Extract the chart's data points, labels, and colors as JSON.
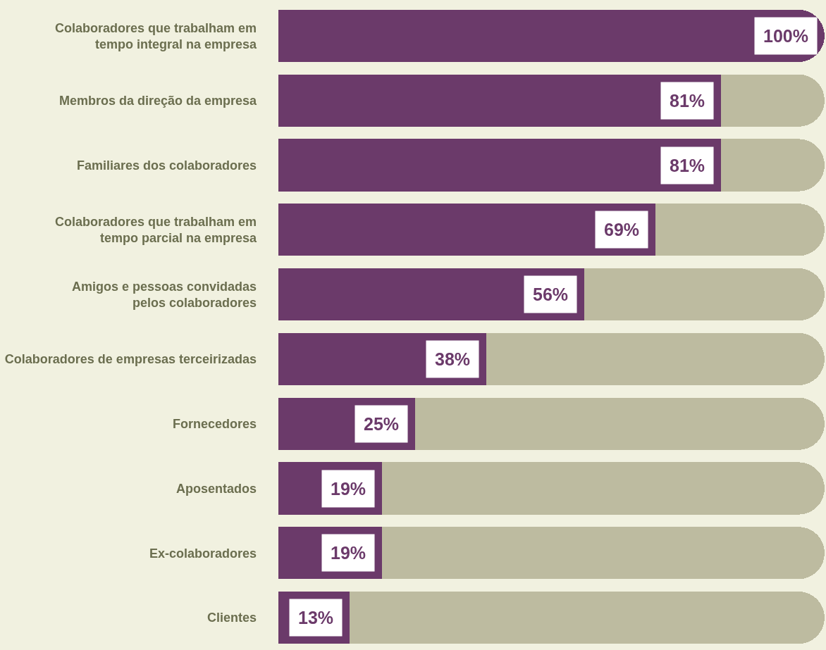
{
  "chart_data": {
    "type": "bar",
    "orientation": "horizontal",
    "stacked": true,
    "xlim": [
      0,
      100
    ],
    "tick_labels": "y",
    "grid": false,
    "categories": [
      "Colaboradores que trabalham em\ntempo integral na empresa",
      "Membros da direção da empresa",
      "Familiares dos colaboradores",
      "Colaboradores que trabalham em\ntempo parcial na empresa",
      "Amigos e pessoas convidadas\npelos colaboradores",
      "Colaboradores de empresas terceirizadas",
      "Fornecedores",
      "Aposentados",
      "Ex-colaboradores",
      "Clientes"
    ],
    "series": [
      {
        "color": "#6b3a6a",
        "values": [
          100,
          81,
          81,
          69,
          56,
          38,
          25,
          19,
          19,
          13
        ],
        "value_labels": [
          "100%",
          "81%",
          "81%",
          "69%",
          "56%",
          "38%",
          "25%",
          "19%",
          "19%",
          "13%"
        ]
      },
      {
        "color": "#bdbba0",
        "values": [
          0,
          19,
          19,
          31,
          44,
          62,
          75,
          81,
          81,
          87
        ]
      }
    ]
  }
}
